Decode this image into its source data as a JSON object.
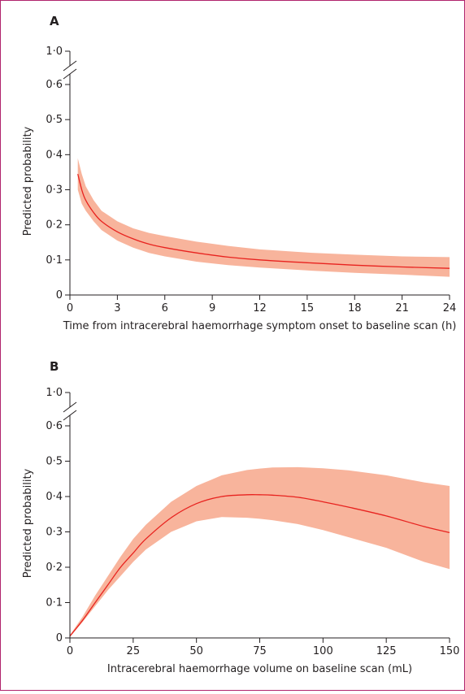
{
  "chart_data": [
    {
      "type": "line",
      "panel_label": "A",
      "xlabel": "Time from intracerebral haemorrhage symptom onset to baseline scan (h)",
      "ylabel": "Predicted probability",
      "xlim": [
        0,
        24
      ],
      "ylim": [
        0,
        0.6
      ],
      "axis_break": {
        "top_value": 1.0,
        "top_label": "1·0"
      },
      "x_ticks": [
        0,
        3,
        6,
        9,
        12,
        15,
        18,
        21,
        24
      ],
      "x_tick_labels": [
        "0",
        "3",
        "6",
        "9",
        "12",
        "15",
        "18",
        "21",
        "24"
      ],
      "y_ticks": [
        0,
        0.1,
        0.2,
        0.3,
        0.4,
        0.5,
        0.6
      ],
      "y_tick_labels": [
        "0",
        "0·1",
        "0·2",
        "0·3",
        "0·4",
        "0·5",
        "0·6"
      ],
      "line_color": "#e8231f",
      "band_color": "#f8b49c",
      "series": [
        {
          "x": [
            0.5,
            0.75,
            1,
            1.5,
            2,
            3,
            4,
            5,
            6,
            8,
            10,
            12,
            15,
            18,
            21,
            24
          ],
          "values": [
            0.345,
            0.3,
            0.27,
            0.235,
            0.21,
            0.18,
            0.16,
            0.145,
            0.135,
            0.12,
            0.108,
            0.1,
            0.092,
            0.085,
            0.08,
            0.076
          ],
          "lower": [
            0.3,
            0.26,
            0.24,
            0.21,
            0.185,
            0.155,
            0.135,
            0.12,
            0.11,
            0.095,
            0.085,
            0.078,
            0.07,
            0.063,
            0.058,
            0.052
          ],
          "upper": [
            0.39,
            0.345,
            0.31,
            0.27,
            0.24,
            0.21,
            0.19,
            0.177,
            0.168,
            0.152,
            0.14,
            0.13,
            0.121,
            0.115,
            0.11,
            0.108
          ]
        }
      ]
    },
    {
      "type": "line",
      "panel_label": "B",
      "xlabel": "Intracerebral haemorrhage volume on baseline scan (mL)",
      "ylabel": "Predicted probability",
      "xlim": [
        0,
        150
      ],
      "ylim": [
        0,
        0.6
      ],
      "axis_break": {
        "top_value": 1.0,
        "top_label": "1·0"
      },
      "x_ticks": [
        0,
        25,
        50,
        75,
        100,
        125,
        150
      ],
      "x_tick_labels": [
        "0",
        "25",
        "50",
        "75",
        "100",
        "125",
        "150"
      ],
      "y_ticks": [
        0,
        0.1,
        0.2,
        0.3,
        0.4,
        0.5,
        0.6
      ],
      "y_tick_labels": [
        "0",
        "0·1",
        "0·2",
        "0·3",
        "0·4",
        "0·5",
        "0·6"
      ],
      "line_color": "#e8231f",
      "band_color": "#f8b49c",
      "series": [
        {
          "x": [
            0,
            5,
            10,
            15,
            20,
            25,
            30,
            40,
            50,
            60,
            70,
            75,
            80,
            90,
            100,
            110,
            125,
            140,
            150
          ],
          "values": [
            0.005,
            0.05,
            0.1,
            0.15,
            0.2,
            0.24,
            0.28,
            0.34,
            0.38,
            0.4,
            0.405,
            0.405,
            0.404,
            0.398,
            0.385,
            0.37,
            0.345,
            0.315,
            0.298
          ],
          "lower": [
            0.003,
            0.045,
            0.09,
            0.135,
            0.175,
            0.215,
            0.25,
            0.3,
            0.33,
            0.342,
            0.34,
            0.337,
            0.333,
            0.322,
            0.305,
            0.285,
            0.255,
            0.215,
            0.195
          ],
          "upper": [
            0.008,
            0.06,
            0.12,
            0.175,
            0.23,
            0.28,
            0.32,
            0.385,
            0.43,
            0.46,
            0.475,
            0.479,
            0.482,
            0.483,
            0.48,
            0.474,
            0.46,
            0.44,
            0.43
          ]
        }
      ]
    }
  ]
}
